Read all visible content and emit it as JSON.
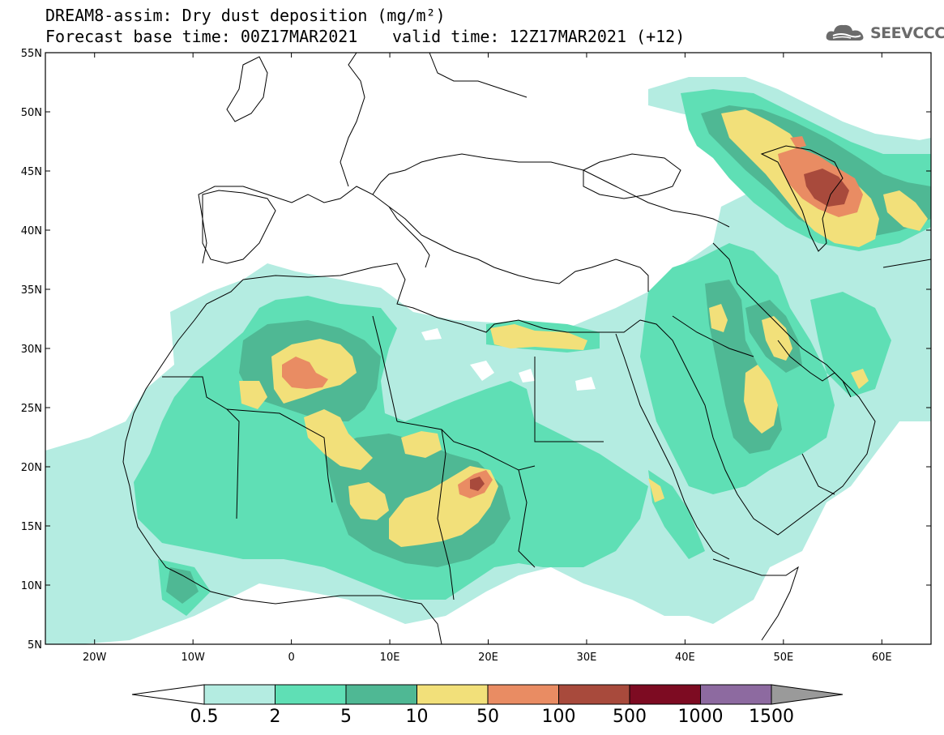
{
  "header": {
    "title": "DREAM8-assim: Dry dust deposition (mg/m²)",
    "base_time": "Forecast base time: 00Z17MAR2021",
    "valid_time": "valid time: 12Z17MAR2021 (+12)",
    "logo_text": "SEEVCCC",
    "logo_icon": "cloud-icon"
  },
  "map": {
    "lat_range": [
      5,
      55
    ],
    "lon_range": [
      -25,
      65
    ],
    "lat_ticks": [
      {
        "label": "55N",
        "lat": 55
      },
      {
        "label": "50N",
        "lat": 50
      },
      {
        "label": "45N",
        "lat": 45
      },
      {
        "label": "40N",
        "lat": 40
      },
      {
        "label": "35N",
        "lat": 35
      },
      {
        "label": "30N",
        "lat": 30
      },
      {
        "label": "25N",
        "lat": 25
      },
      {
        "label": "20N",
        "lat": 20
      },
      {
        "label": "15N",
        "lat": 15
      },
      {
        "label": "10N",
        "lat": 10
      },
      {
        "label": "5N",
        "lat": 5
      }
    ],
    "lon_ticks": [
      {
        "label": "20W",
        "lon": -20
      },
      {
        "label": "10W",
        "lon": -10
      },
      {
        "label": "0",
        "lon": 0
      },
      {
        "label": "10E",
        "lon": 10
      },
      {
        "label": "20E",
        "lon": 20
      },
      {
        "label": "30E",
        "lon": 30
      },
      {
        "label": "40E",
        "lon": 40
      },
      {
        "label": "50E",
        "lon": 50
      },
      {
        "label": "60E",
        "lon": 60
      }
    ]
  },
  "colorbar": {
    "labels": [
      "0.5",
      "2",
      "5",
      "10",
      "50",
      "100",
      "500",
      "1000",
      "1500"
    ],
    "colors": [
      "#b4ece1",
      "#5fdfb5",
      "#4fb894",
      "#f2e07a",
      "#e98c63",
      "#a84a3c",
      "#7d0b22",
      "#8d6aa0"
    ],
    "under_color": "#ffffff",
    "over_color": "#9a9a9a"
  }
}
